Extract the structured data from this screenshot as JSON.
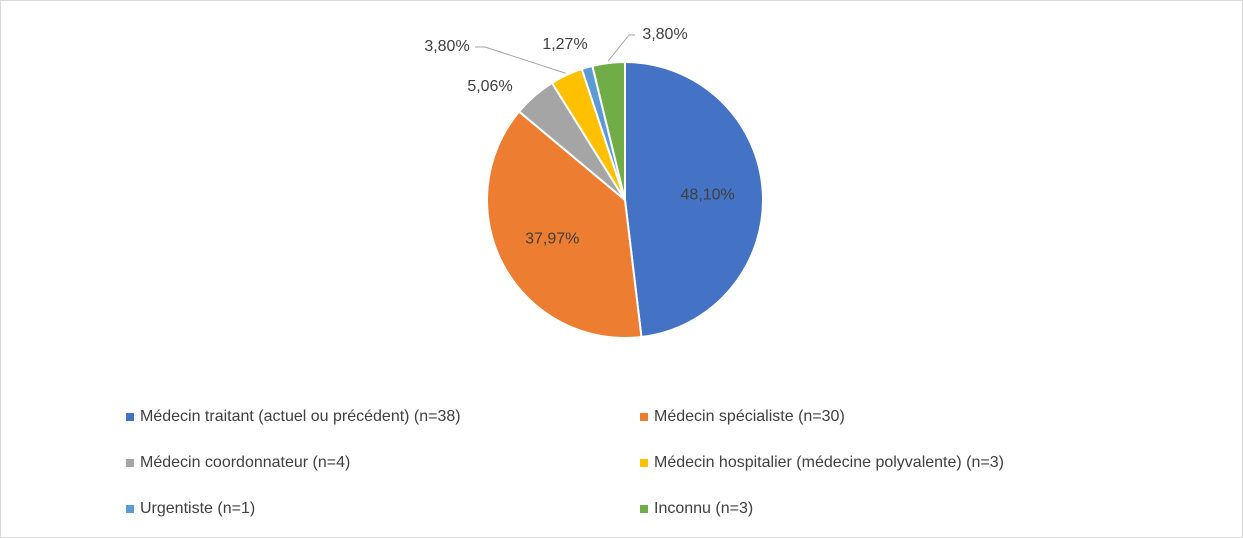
{
  "chart_data": {
    "type": "pie",
    "categories": [
      "Médecin traitant (actuel ou précédent) (n=38)",
      "Médecin spécialiste (n=30)",
      "Médecin coordonnateur (n=4)",
      "Médecin hospitalier (médecine polyvalente) (n=3)",
      "Urgentiste (n=1)",
      "Inconnu (n=3)"
    ],
    "values": [
      48.1,
      37.97,
      5.06,
      3.8,
      1.27,
      3.8
    ],
    "value_labels": [
      "48,10%",
      "37,97%",
      "5,06%",
      "3,80%",
      "1,27%",
      "3,80%"
    ],
    "colors": [
      "#4472c4",
      "#ed7d31",
      "#a5a5a5",
      "#ffc000",
      "#5b9bd5",
      "#70ad47"
    ],
    "legend": "bottom"
  }
}
